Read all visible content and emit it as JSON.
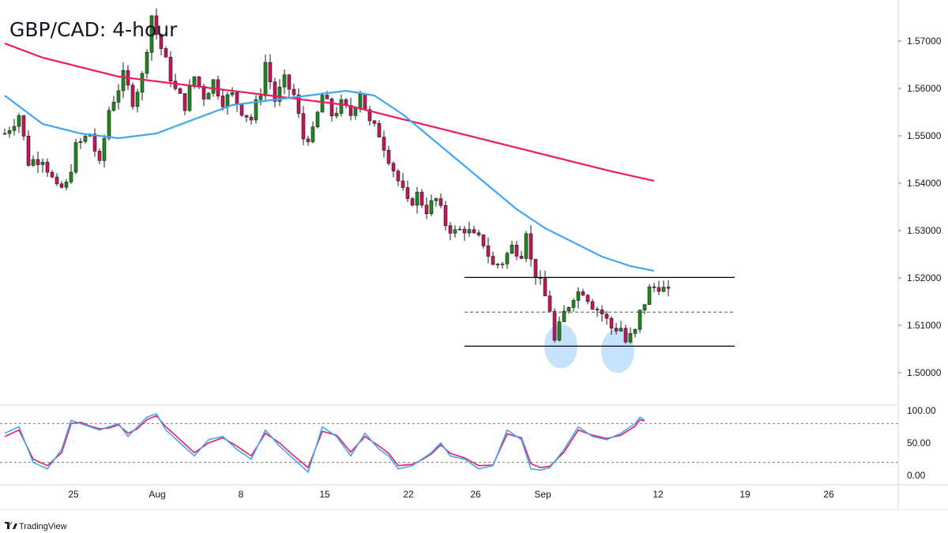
{
  "title": "GBP/CAD: 4-hour",
  "brand": "TradingView",
  "colors": {
    "bull": "#26a69a",
    "bull_fill": "#1e8a1e",
    "bear": "#c2185b",
    "ma_slow": "#e91e63",
    "ma_fast": "#42a5f5",
    "stoch_k": "#42a5f5",
    "stoch_d": "#e91e63",
    "ellipse": "#bbdefb",
    "level_line": "#000000"
  },
  "chart_data": [
    {
      "type": "candlestick",
      "title": "GBP/CAD: 4-hour",
      "x_tick_labels": [
        "25",
        "Aug",
        "8",
        "15",
        "22",
        "26",
        "Sep",
        "12",
        "19",
        "26"
      ],
      "y_tick_labels": [
        "1.57000",
        "1.56000",
        "1.55000",
        "1.54000",
        "1.53000",
        "1.52000",
        "1.51000",
        "1.50000"
      ],
      "ylim": [
        1.4955,
        1.5765
      ],
      "grid": false,
      "close_path": [
        [
          0,
          1.5505
        ],
        [
          3,
          1.5545
        ],
        [
          5,
          1.5445
        ],
        [
          8,
          1.5455
        ],
        [
          11,
          1.5385
        ],
        [
          13,
          1.5395
        ],
        [
          15,
          1.5475
        ],
        [
          18,
          1.5505
        ],
        [
          20,
          1.5435
        ],
        [
          22,
          1.5555
        ],
        [
          25,
          1.5625
        ],
        [
          27,
          1.5575
        ],
        [
          29,
          1.5625
        ],
        [
          31,
          1.5755
        ],
        [
          32,
          1.5715
        ],
        [
          34,
          1.5655
        ],
        [
          36,
          1.5595
        ],
        [
          38,
          1.5565
        ],
        [
          40,
          1.5625
        ],
        [
          42,
          1.5585
        ],
        [
          44,
          1.5615
        ],
        [
          46,
          1.5575
        ],
        [
          48,
          1.5585
        ],
        [
          50,
          1.5555
        ],
        [
          52,
          1.5535
        ],
        [
          54,
          1.5595
        ],
        [
          55,
          1.5655
        ],
        [
          57,
          1.5575
        ],
        [
          59,
          1.5615
        ],
        [
          61,
          1.5585
        ],
        [
          63,
          1.5495
        ],
        [
          65,
          1.5505
        ],
        [
          67,
          1.5585
        ],
        [
          69,
          1.5545
        ],
        [
          71,
          1.5565
        ],
        [
          73,
          1.5545
        ],
        [
          75,
          1.5595
        ],
        [
          77,
          1.5525
        ],
        [
          79,
          1.5505
        ],
        [
          81,
          1.5455
        ],
        [
          83,
          1.5405
        ],
        [
          85,
          1.5355
        ],
        [
          87,
          1.5375
        ],
        [
          89,
          1.5345
        ],
        [
          91,
          1.5365
        ],
        [
          93,
          1.5315
        ],
        [
          95,
          1.5295
        ],
        [
          97,
          1.5305
        ],
        [
          99,
          1.5285
        ],
        [
          101,
          1.5275
        ],
        [
          103,
          1.5225
        ],
        [
          105,
          1.5235
        ],
        [
          107,
          1.5265
        ],
        [
          109,
          1.5255
        ],
        [
          110,
          1.5305
        ],
        [
          111,
          1.5235
        ],
        [
          113,
          1.5185
        ],
        [
          115,
          1.5135
        ],
        [
          116,
          1.5065
        ],
        [
          118,
          1.5125
        ],
        [
          120,
          1.5165
        ],
        [
          122,
          1.5175
        ],
        [
          124,
          1.5145
        ],
        [
          126,
          1.5125
        ],
        [
          128,
          1.5095
        ],
        [
          130,
          1.5095
        ],
        [
          131,
          1.5065
        ],
        [
          133,
          1.5085
        ],
        [
          134,
          1.5125
        ],
        [
          136,
          1.5175
        ],
        [
          138,
          1.5185
        ],
        [
          140,
          1.5165
        ]
      ],
      "ma_fast_path": [
        [
          0,
          1.5585
        ],
        [
          8,
          1.5525
        ],
        [
          16,
          1.5505
        ],
        [
          24,
          1.5495
        ],
        [
          32,
          1.5505
        ],
        [
          40,
          1.5535
        ],
        [
          48,
          1.5565
        ],
        [
          56,
          1.5575
        ],
        [
          64,
          1.5585
        ],
        [
          72,
          1.5595
        ],
        [
          78,
          1.5585
        ],
        [
          84,
          1.5545
        ],
        [
          90,
          1.5495
        ],
        [
          96,
          1.5445
        ],
        [
          102,
          1.5395
        ],
        [
          108,
          1.5345
        ],
        [
          114,
          1.5305
        ],
        [
          120,
          1.5275
        ],
        [
          126,
          1.5245
        ],
        [
          132,
          1.5225
        ],
        [
          137,
          1.5215
        ]
      ],
      "ma_slow_path": [
        [
          0,
          1.5695
        ],
        [
          8,
          1.5665
        ],
        [
          16,
          1.5645
        ],
        [
          24,
          1.5625
        ],
        [
          32,
          1.5615
        ],
        [
          40,
          1.5605
        ],
        [
          48,
          1.5595
        ],
        [
          56,
          1.5585
        ],
        [
          64,
          1.5575
        ],
        [
          72,
          1.5565
        ],
        [
          80,
          1.5545
        ],
        [
          88,
          1.5525
        ],
        [
          96,
          1.5505
        ],
        [
          104,
          1.5485
        ],
        [
          112,
          1.5465
        ],
        [
          120,
          1.5445
        ],
        [
          128,
          1.5425
        ],
        [
          137,
          1.5405
        ]
      ],
      "levels": {
        "resistance": 1.5201,
        "midline": 1.5128,
        "support": 1.5056,
        "level_start_bar": 97
      },
      "highlights": [
        {
          "bar": 117,
          "price": 1.5056
        },
        {
          "bar": 129,
          "price": 1.5046
        }
      ]
    },
    {
      "type": "line",
      "name": "stochastic",
      "y_tick_labels": [
        "100.00",
        "50.00",
        "0.00"
      ],
      "ylim": [
        0,
        100
      ],
      "bands": [
        80,
        20
      ],
      "k_path": [
        [
          0,
          65
        ],
        [
          3,
          75
        ],
        [
          6,
          20
        ],
        [
          9,
          10
        ],
        [
          12,
          40
        ],
        [
          14,
          85
        ],
        [
          16,
          80
        ],
        [
          18,
          75
        ],
        [
          20,
          70
        ],
        [
          22,
          75
        ],
        [
          24,
          80
        ],
        [
          26,
          60
        ],
        [
          28,
          75
        ],
        [
          30,
          90
        ],
        [
          32,
          95
        ],
        [
          34,
          70
        ],
        [
          37,
          50
        ],
        [
          40,
          30
        ],
        [
          43,
          55
        ],
        [
          46,
          60
        ],
        [
          49,
          40
        ],
        [
          52,
          25
        ],
        [
          55,
          70
        ],
        [
          58,
          45
        ],
        [
          61,
          25
        ],
        [
          64,
          5
        ],
        [
          67,
          75
        ],
        [
          70,
          60
        ],
        [
          73,
          30
        ],
        [
          76,
          65
        ],
        [
          79,
          40
        ],
        [
          81,
          30
        ],
        [
          83,
          10
        ],
        [
          86,
          15
        ],
        [
          88,
          25
        ],
        [
          90,
          35
        ],
        [
          92,
          50
        ],
        [
          94,
          30
        ],
        [
          97,
          25
        ],
        [
          100,
          10
        ],
        [
          103,
          15
        ],
        [
          106,
          70
        ],
        [
          109,
          55
        ],
        [
          111,
          10
        ],
        [
          113,
          8
        ],
        [
          115,
          12
        ],
        [
          118,
          40
        ],
        [
          121,
          75
        ],
        [
          124,
          60
        ],
        [
          127,
          55
        ],
        [
          130,
          65
        ],
        [
          133,
          80
        ],
        [
          134,
          90
        ],
        [
          135,
          85
        ]
      ],
      "d_path": [
        [
          0,
          60
        ],
        [
          3,
          70
        ],
        [
          6,
          25
        ],
        [
          9,
          15
        ],
        [
          12,
          35
        ],
        [
          14,
          80
        ],
        [
          16,
          82
        ],
        [
          18,
          76
        ],
        [
          20,
          72
        ],
        [
          22,
          73
        ],
        [
          24,
          78
        ],
        [
          26,
          65
        ],
        [
          28,
          72
        ],
        [
          30,
          86
        ],
        [
          32,
          92
        ],
        [
          34,
          75
        ],
        [
          37,
          55
        ],
        [
          40,
          35
        ],
        [
          43,
          50
        ],
        [
          46,
          58
        ],
        [
          49,
          45
        ],
        [
          52,
          30
        ],
        [
          55,
          65
        ],
        [
          58,
          50
        ],
        [
          61,
          30
        ],
        [
          64,
          12
        ],
        [
          67,
          68
        ],
        [
          70,
          62
        ],
        [
          73,
          36
        ],
        [
          76,
          60
        ],
        [
          79,
          45
        ],
        [
          81,
          34
        ],
        [
          83,
          15
        ],
        [
          86,
          17
        ],
        [
          88,
          24
        ],
        [
          90,
          33
        ],
        [
          92,
          47
        ],
        [
          94,
          34
        ],
        [
          97,
          27
        ],
        [
          100,
          15
        ],
        [
          103,
          16
        ],
        [
          106,
          64
        ],
        [
          109,
          58
        ],
        [
          111,
          18
        ],
        [
          113,
          12
        ],
        [
          115,
          14
        ],
        [
          118,
          36
        ],
        [
          121,
          70
        ],
        [
          124,
          62
        ],
        [
          127,
          57
        ],
        [
          130,
          62
        ],
        [
          133,
          76
        ],
        [
          134,
          86
        ],
        [
          135,
          84
        ]
      ]
    }
  ]
}
